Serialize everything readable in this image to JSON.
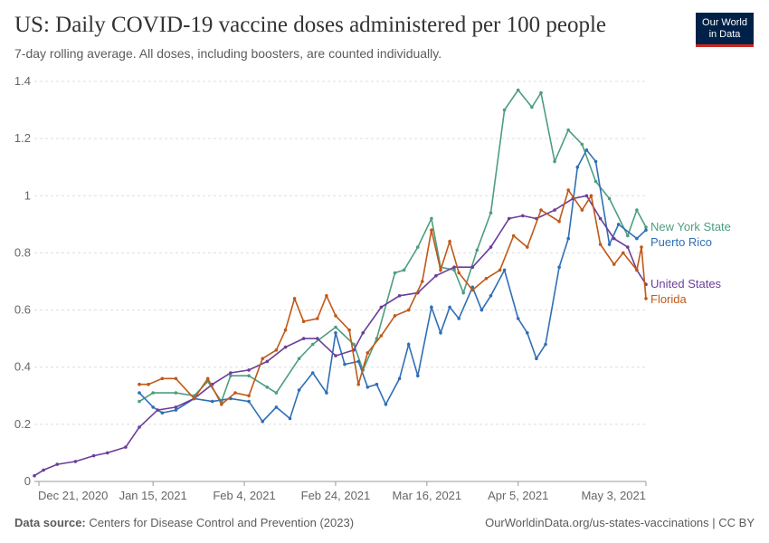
{
  "header": {
    "title": "US: Daily COVID-19 vaccine doses administered per 100 people",
    "subtitle": "7-day rolling average. All doses, including boosters, are counted individually."
  },
  "logo": {
    "line1": "Our World",
    "line2": "in Data"
  },
  "footer": {
    "source_label": "Data source:",
    "source_text": "Centers for Disease Control and Prevention (2023)",
    "url_text": "OurWorldinData.org/us-states-vaccinations | CC BY"
  },
  "chart_data": {
    "type": "line",
    "x_axis": {
      "type": "date",
      "min": "2020-12-20",
      "max": "2021-05-03",
      "ticks": [
        "2020-12-21",
        "2021-01-15",
        "2021-02-04",
        "2021-02-24",
        "2021-03-16",
        "2021-04-05",
        "2021-05-03"
      ],
      "tick_labels": [
        "Dec 21, 2020",
        "Jan 15, 2021",
        "Feb 4, 2021",
        "Feb 24, 2021",
        "Mar 16, 2021",
        "Apr 5, 2021",
        "May 3, 2021"
      ]
    },
    "y_axis": {
      "min": 0,
      "max": 1.4,
      "ticks": [
        0,
        0.2,
        0.4,
        0.6,
        0.8,
        1,
        1.2,
        1.4
      ],
      "tick_labels": [
        "0",
        "0.2",
        "0.4",
        "0.6",
        "0.8",
        "1",
        "1.2",
        "1.4"
      ]
    },
    "grid": "horizontal-dashed",
    "legend": "right-end-labels",
    "series": [
      {
        "name": "New York State",
        "color": "#4c9e7e",
        "points": [
          [
            "2021-01-12",
            0.28
          ],
          [
            "2021-01-15",
            0.31
          ],
          [
            "2021-01-20",
            0.31
          ],
          [
            "2021-01-24",
            0.3
          ],
          [
            "2021-01-27",
            0.35
          ],
          [
            "2021-01-30",
            0.28
          ],
          [
            "2021-02-01",
            0.37
          ],
          [
            "2021-02-05",
            0.37
          ],
          [
            "2021-02-09",
            0.33
          ],
          [
            "2021-02-11",
            0.31
          ],
          [
            "2021-02-16",
            0.43
          ],
          [
            "2021-02-19",
            0.48
          ],
          [
            "2021-02-24",
            0.54
          ],
          [
            "2021-02-28",
            0.48
          ],
          [
            "2021-03-02",
            0.39
          ],
          [
            "2021-03-05",
            0.5
          ],
          [
            "2021-03-09",
            0.73
          ],
          [
            "2021-03-11",
            0.74
          ],
          [
            "2021-03-14",
            0.82
          ],
          [
            "2021-03-17",
            0.92
          ],
          [
            "2021-03-19",
            0.75
          ],
          [
            "2021-03-22",
            0.74
          ],
          [
            "2021-03-24",
            0.66
          ],
          [
            "2021-03-27",
            0.81
          ],
          [
            "2021-03-30",
            0.94
          ],
          [
            "2021-04-02",
            1.3
          ],
          [
            "2021-04-05",
            1.37
          ],
          [
            "2021-04-08",
            1.31
          ],
          [
            "2021-04-10",
            1.36
          ],
          [
            "2021-04-13",
            1.12
          ],
          [
            "2021-04-16",
            1.23
          ],
          [
            "2021-04-19",
            1.18
          ],
          [
            "2021-04-22",
            1.05
          ],
          [
            "2021-04-25",
            0.99
          ],
          [
            "2021-04-29",
            0.86
          ],
          [
            "2021-05-01",
            0.95
          ],
          [
            "2021-05-03",
            0.89
          ]
        ]
      },
      {
        "name": "Puerto Rico",
        "color": "#2f6fb6",
        "points": [
          [
            "2021-01-12",
            0.31
          ],
          [
            "2021-01-15",
            0.26
          ],
          [
            "2021-01-17",
            0.24
          ],
          [
            "2021-01-20",
            0.25
          ],
          [
            "2021-01-24",
            0.29
          ],
          [
            "2021-01-28",
            0.28
          ],
          [
            "2021-02-01",
            0.29
          ],
          [
            "2021-02-05",
            0.28
          ],
          [
            "2021-02-08",
            0.21
          ],
          [
            "2021-02-11",
            0.26
          ],
          [
            "2021-02-14",
            0.22
          ],
          [
            "2021-02-16",
            0.32
          ],
          [
            "2021-02-19",
            0.38
          ],
          [
            "2021-02-22",
            0.31
          ],
          [
            "2021-02-24",
            0.52
          ],
          [
            "2021-02-26",
            0.41
          ],
          [
            "2021-03-01",
            0.42
          ],
          [
            "2021-03-03",
            0.33
          ],
          [
            "2021-03-05",
            0.34
          ],
          [
            "2021-03-07",
            0.27
          ],
          [
            "2021-03-10",
            0.36
          ],
          [
            "2021-03-12",
            0.48
          ],
          [
            "2021-03-14",
            0.37
          ],
          [
            "2021-03-17",
            0.61
          ],
          [
            "2021-03-19",
            0.52
          ],
          [
            "2021-03-21",
            0.61
          ],
          [
            "2021-03-23",
            0.57
          ],
          [
            "2021-03-26",
            0.68
          ],
          [
            "2021-03-28",
            0.6
          ],
          [
            "2021-03-30",
            0.65
          ],
          [
            "2021-04-02",
            0.74
          ],
          [
            "2021-04-05",
            0.57
          ],
          [
            "2021-04-07",
            0.52
          ],
          [
            "2021-04-09",
            0.43
          ],
          [
            "2021-04-11",
            0.48
          ],
          [
            "2021-04-14",
            0.75
          ],
          [
            "2021-04-16",
            0.85
          ],
          [
            "2021-04-18",
            1.1
          ],
          [
            "2021-04-20",
            1.16
          ],
          [
            "2021-04-22",
            1.12
          ],
          [
            "2021-04-25",
            0.83
          ],
          [
            "2021-04-27",
            0.9
          ],
          [
            "2021-05-01",
            0.85
          ],
          [
            "2021-05-03",
            0.88
          ]
        ]
      },
      {
        "name": "United States",
        "color": "#6c3e99",
        "points": [
          [
            "2020-12-20",
            0.02
          ],
          [
            "2020-12-22",
            0.04
          ],
          [
            "2020-12-25",
            0.06
          ],
          [
            "2020-12-29",
            0.07
          ],
          [
            "2021-01-02",
            0.09
          ],
          [
            "2021-01-05",
            0.1
          ],
          [
            "2021-01-09",
            0.12
          ],
          [
            "2021-01-12",
            0.19
          ],
          [
            "2021-01-16",
            0.25
          ],
          [
            "2021-01-20",
            0.26
          ],
          [
            "2021-01-24",
            0.29
          ],
          [
            "2021-01-28",
            0.34
          ],
          [
            "2021-02-01",
            0.38
          ],
          [
            "2021-02-05",
            0.39
          ],
          [
            "2021-02-09",
            0.42
          ],
          [
            "2021-02-13",
            0.47
          ],
          [
            "2021-02-17",
            0.5
          ],
          [
            "2021-02-20",
            0.5
          ],
          [
            "2021-02-24",
            0.44
          ],
          [
            "2021-02-28",
            0.46
          ],
          [
            "2021-03-02",
            0.52
          ],
          [
            "2021-03-06",
            0.61
          ],
          [
            "2021-03-10",
            0.65
          ],
          [
            "2021-03-14",
            0.66
          ],
          [
            "2021-03-18",
            0.72
          ],
          [
            "2021-03-22",
            0.75
          ],
          [
            "2021-03-26",
            0.75
          ],
          [
            "2021-03-30",
            0.82
          ],
          [
            "2021-04-03",
            0.92
          ],
          [
            "2021-04-06",
            0.93
          ],
          [
            "2021-04-09",
            0.92
          ],
          [
            "2021-04-13",
            0.95
          ],
          [
            "2021-04-17",
            0.99
          ],
          [
            "2021-04-20",
            1.0
          ],
          [
            "2021-04-23",
            0.92
          ],
          [
            "2021-04-26",
            0.85
          ],
          [
            "2021-04-29",
            0.82
          ],
          [
            "2021-05-01",
            0.74
          ],
          [
            "2021-05-03",
            0.69
          ]
        ]
      },
      {
        "name": "Florida",
        "color": "#c05917",
        "points": [
          [
            "2021-01-12",
            0.34
          ],
          [
            "2021-01-14",
            0.34
          ],
          [
            "2021-01-17",
            0.36
          ],
          [
            "2021-01-20",
            0.36
          ],
          [
            "2021-01-24",
            0.29
          ],
          [
            "2021-01-27",
            0.36
          ],
          [
            "2021-01-30",
            0.27
          ],
          [
            "2021-02-02",
            0.31
          ],
          [
            "2021-02-05",
            0.3
          ],
          [
            "2021-02-08",
            0.43
          ],
          [
            "2021-02-11",
            0.46
          ],
          [
            "2021-02-13",
            0.53
          ],
          [
            "2021-02-15",
            0.64
          ],
          [
            "2021-02-17",
            0.56
          ],
          [
            "2021-02-20",
            0.57
          ],
          [
            "2021-02-22",
            0.65
          ],
          [
            "2021-02-24",
            0.58
          ],
          [
            "2021-02-27",
            0.53
          ],
          [
            "2021-03-01",
            0.34
          ],
          [
            "2021-03-03",
            0.45
          ],
          [
            "2021-03-06",
            0.51
          ],
          [
            "2021-03-09",
            0.58
          ],
          [
            "2021-03-12",
            0.6
          ],
          [
            "2021-03-15",
            0.7
          ],
          [
            "2021-03-17",
            0.88
          ],
          [
            "2021-03-19",
            0.74
          ],
          [
            "2021-03-21",
            0.84
          ],
          [
            "2021-03-23",
            0.73
          ],
          [
            "2021-03-26",
            0.67
          ],
          [
            "2021-03-29",
            0.71
          ],
          [
            "2021-04-01",
            0.74
          ],
          [
            "2021-04-04",
            0.86
          ],
          [
            "2021-04-07",
            0.82
          ],
          [
            "2021-04-10",
            0.95
          ],
          [
            "2021-04-14",
            0.91
          ],
          [
            "2021-04-16",
            1.02
          ],
          [
            "2021-04-19",
            0.95
          ],
          [
            "2021-04-21",
            1.0
          ],
          [
            "2021-04-23",
            0.83
          ],
          [
            "2021-04-26",
            0.76
          ],
          [
            "2021-04-28",
            0.8
          ],
          [
            "2021-05-01",
            0.74
          ],
          [
            "2021-05-02",
            0.82
          ],
          [
            "2021-05-03",
            0.64
          ]
        ]
      }
    ]
  }
}
